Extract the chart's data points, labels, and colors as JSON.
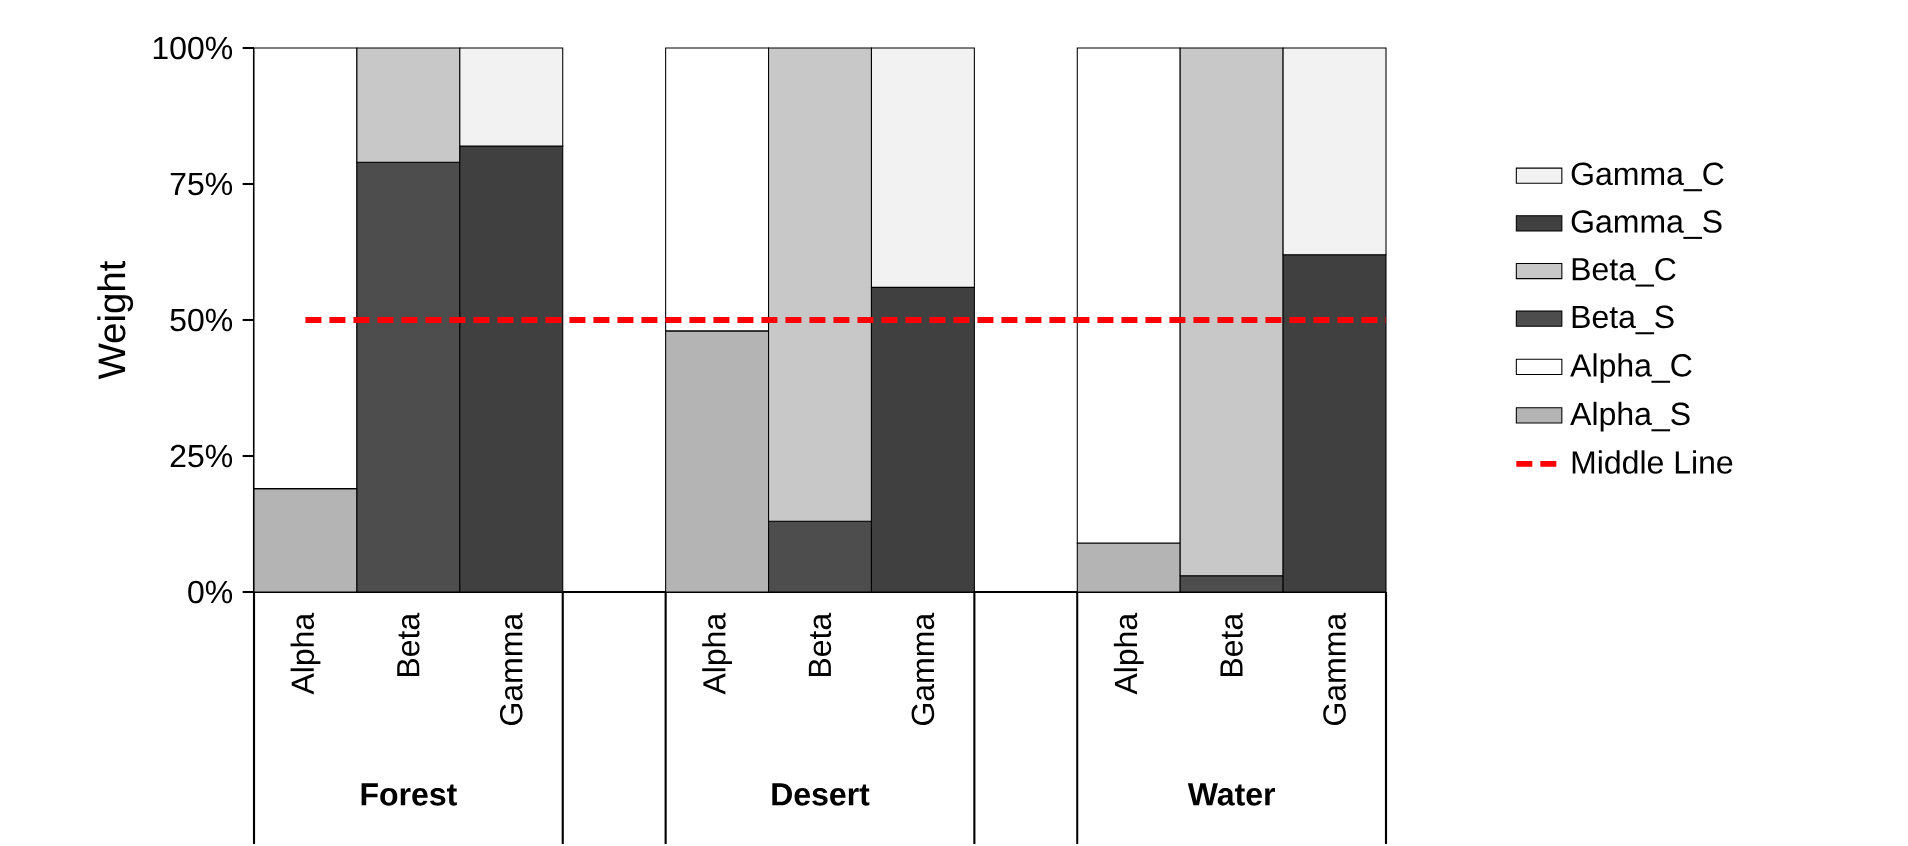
{
  "chart_data": {
    "type": "bar",
    "stacked": true,
    "ylabel": "Weight",
    "categories": [
      "Alpha",
      "Beta",
      "Gamma",
      null,
      "Alpha",
      "Beta",
      "Gamma",
      null,
      "Alpha",
      "Beta",
      "Gamma"
    ],
    "series": [
      {
        "name": "Alpha_S",
        "color": "#b4b4b4",
        "values": [
          19,
          null,
          null,
          null,
          48,
          null,
          null,
          null,
          9,
          null,
          null
        ]
      },
      {
        "name": "Alpha_C",
        "color": "#ffffff",
        "values": [
          81,
          null,
          null,
          null,
          52,
          null,
          null,
          null,
          91,
          null,
          null
        ]
      },
      {
        "name": "Beta_S",
        "color": "#4d4d4d",
        "values": [
          null,
          79,
          null,
          null,
          null,
          13,
          null,
          null,
          null,
          3,
          null
        ]
      },
      {
        "name": "Beta_C",
        "color": "#c8c8c8",
        "values": [
          null,
          21,
          null,
          null,
          null,
          87,
          null,
          null,
          null,
          97,
          null
        ]
      },
      {
        "name": "Gamma_S",
        "color": "#404040",
        "values": [
          null,
          null,
          82,
          null,
          null,
          null,
          56,
          null,
          null,
          null,
          62
        ]
      },
      {
        "name": "Gamma_C",
        "color": "#f2f2f2",
        "values": [
          null,
          null,
          18,
          null,
          null,
          null,
          44,
          null,
          null,
          null,
          38
        ]
      }
    ],
    "ylim": [
      0,
      100
    ],
    "yticks": [
      {
        "value": 0,
        "label": "0%"
      },
      {
        "value": 25,
        "label": "25%"
      },
      {
        "value": 50,
        "label": "50%"
      },
      {
        "value": 75,
        "label": "75%"
      },
      {
        "value": 100,
        "label": "100%"
      }
    ],
    "ref_lines": [
      {
        "axis": "y",
        "value": 50,
        "label": "Middle Line",
        "color": "#ff0000",
        "line_style": "dashed"
      }
    ],
    "annotations": [
      "Forest",
      "Desert",
      "Water"
    ],
    "legend": "right"
  }
}
